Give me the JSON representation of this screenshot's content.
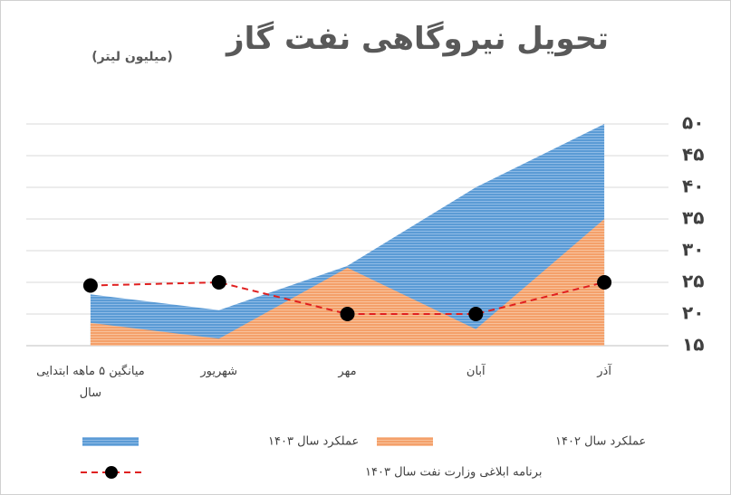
{
  "chart_data": {
    "type": "area",
    "title": "تحویل نیروگاهی نفت گاز",
    "subtitle": "(میلیون لیتر)",
    "categories": [
      "میانگین ۵ ماهه ابتدایی سال",
      "شهریور",
      "مهر",
      "آبان",
      "آذر"
    ],
    "series": [
      {
        "name": "عملکرد سال ۱۴۰۳",
        "type": "area",
        "color": "#5b9bd5",
        "values": [
          23.1,
          20.6,
          27.6,
          40,
          50
        ]
      },
      {
        "name": "عملکرد سال ۱۴۰۲",
        "type": "area",
        "color": "#f4a06a",
        "values": [
          18.6,
          16.1,
          27.3,
          17.6,
          35
        ]
      },
      {
        "name": "برنامه ابلاغی وزارت نفت سال ۱۴۰۳",
        "type": "line",
        "color": "#e02020",
        "values": [
          24.5,
          25,
          20,
          20,
          25
        ]
      }
    ],
    "ylim": [
      15,
      50
    ],
    "yticks": [
      {
        "value": 15,
        "label": "۱۵"
      },
      {
        "value": 20,
        "label": "۲۰"
      },
      {
        "value": 25,
        "label": "۲۵"
      },
      {
        "value": 30,
        "label": "۳۰"
      },
      {
        "value": 35,
        "label": "۳۵"
      },
      {
        "value": 40,
        "label": "۴۰"
      },
      {
        "value": 45,
        "label": "۴۵"
      },
      {
        "value": 50,
        "label": "۵۰"
      }
    ],
    "grid": true
  }
}
